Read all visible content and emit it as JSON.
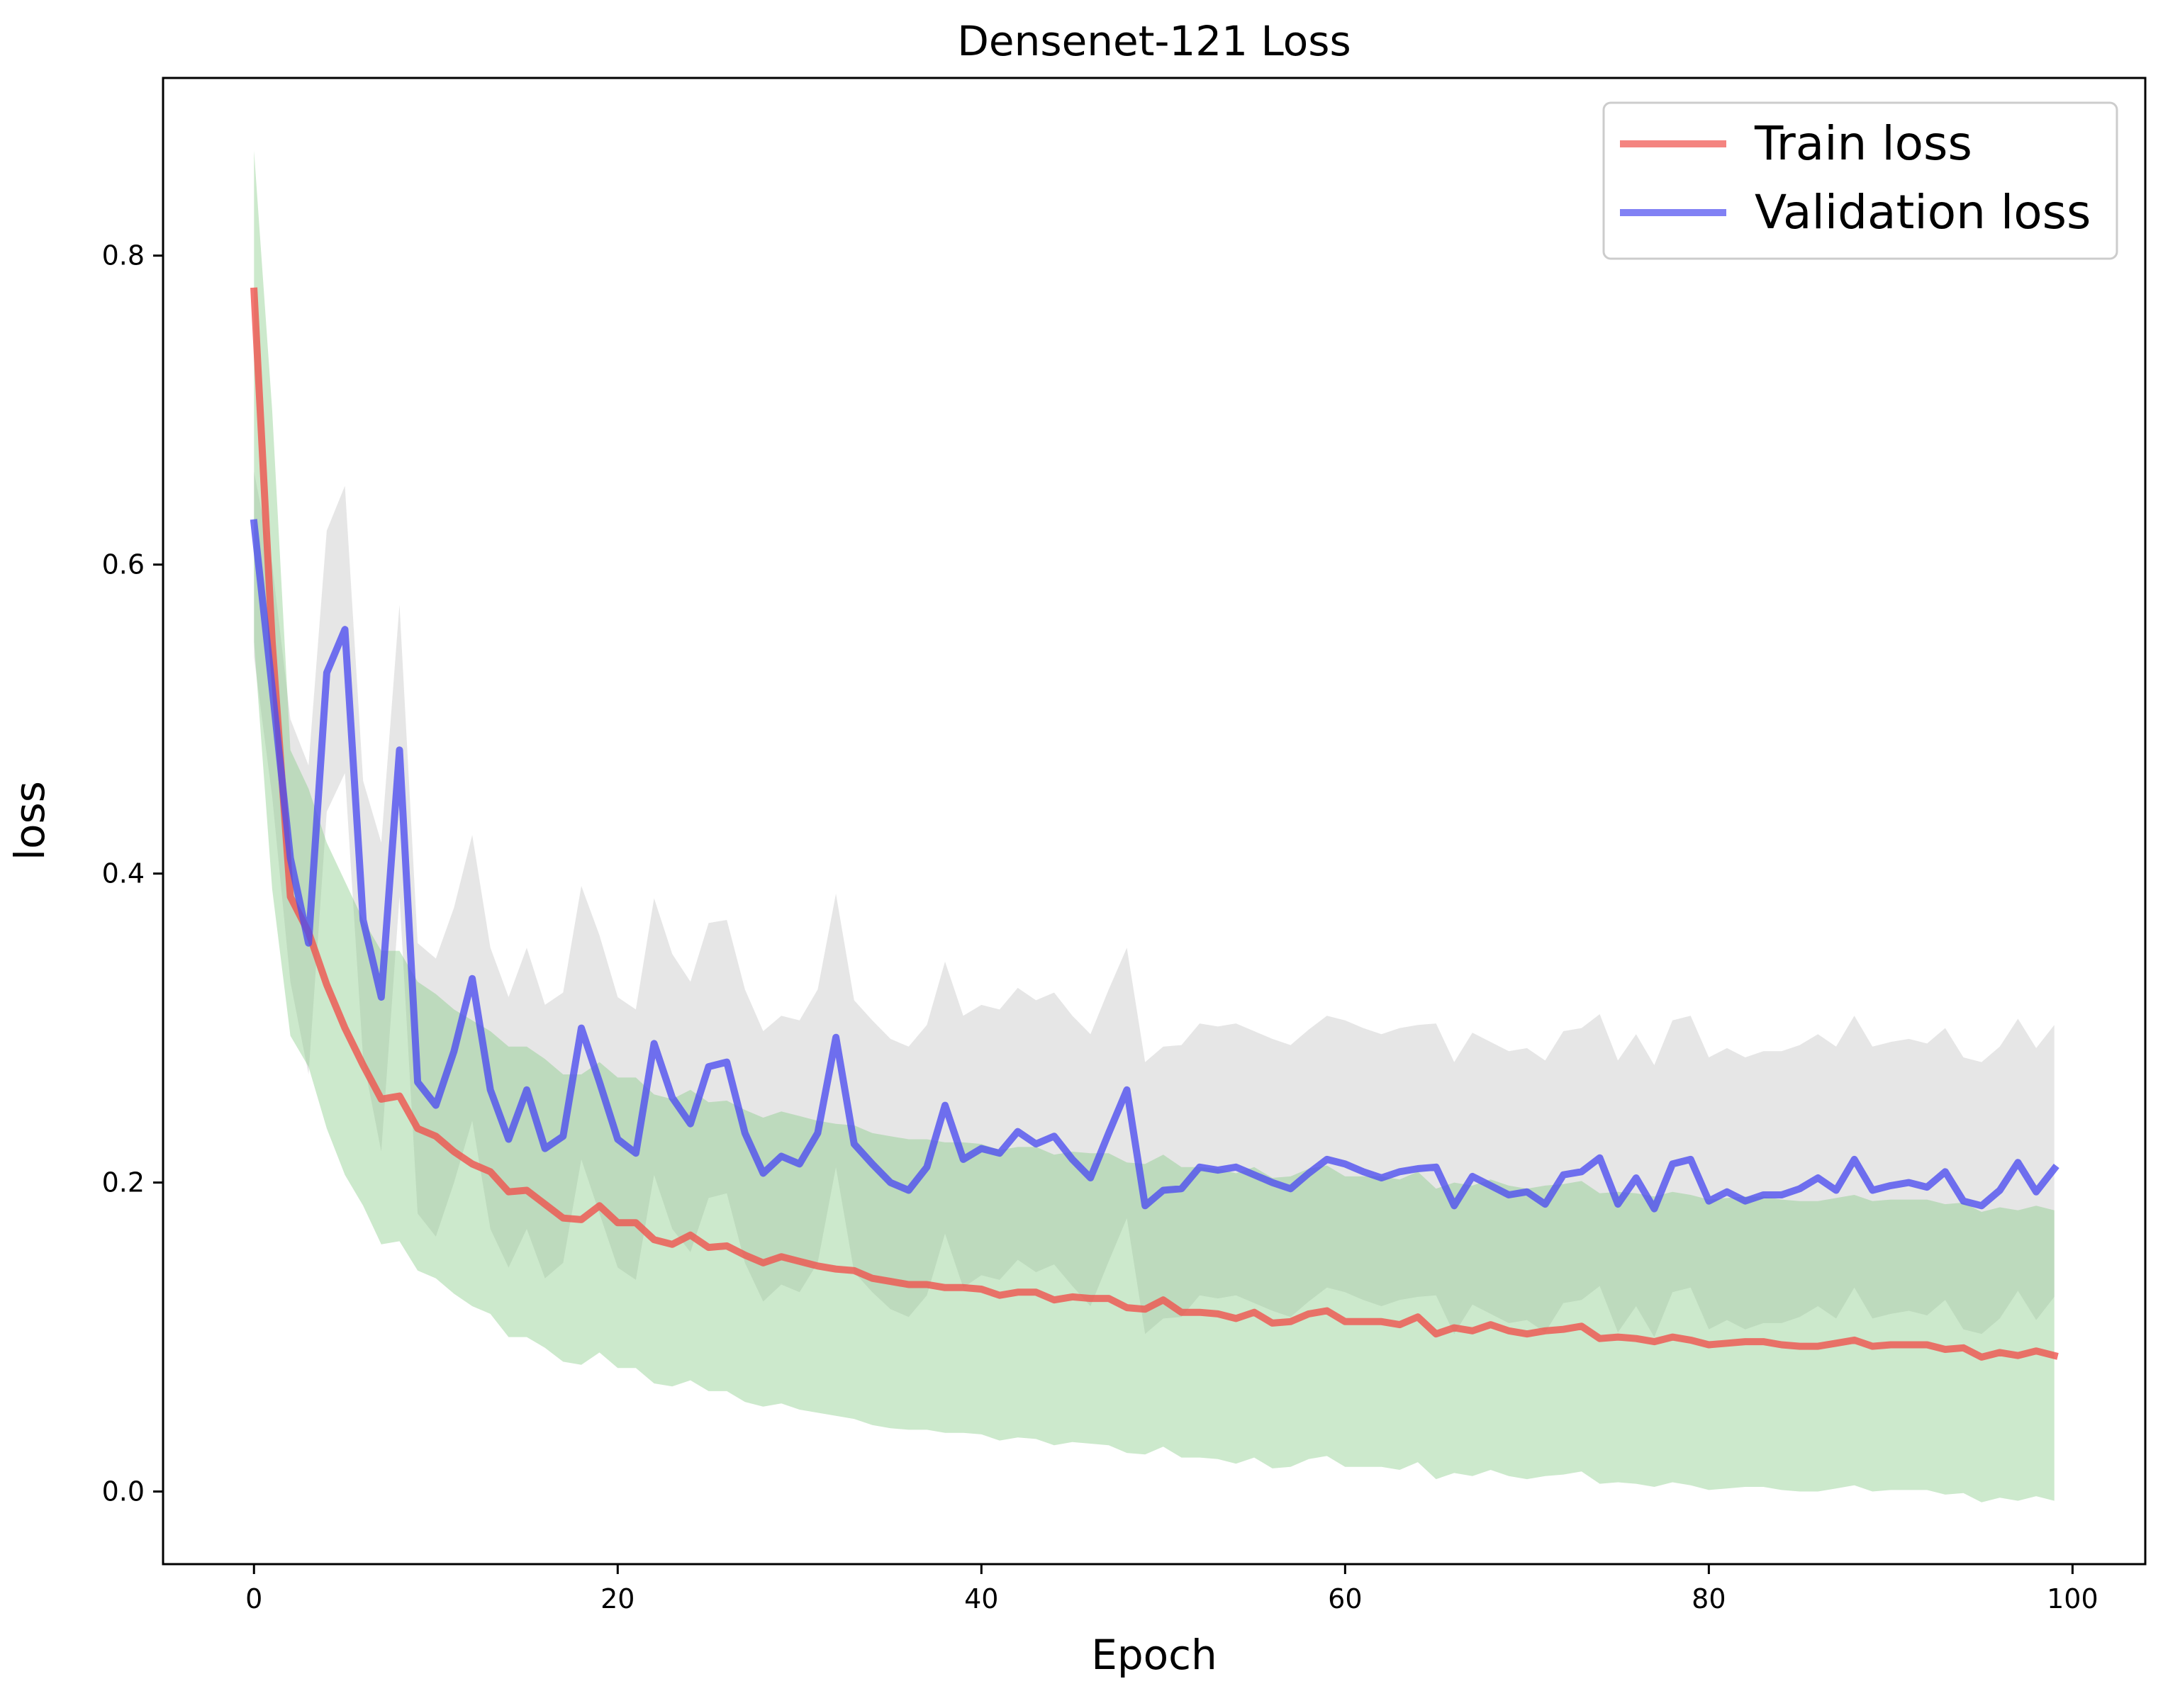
{
  "chart_data": {
    "type": "line",
    "title": "Densenet-121 Loss",
    "xlabel": "Epoch",
    "ylabel": "loss",
    "xlim": [
      -5,
      104
    ],
    "ylim": [
      -0.047,
      0.915
    ],
    "xticks": [
      0,
      20,
      40,
      60,
      80,
      100
    ],
    "yticks": [
      0.0,
      0.2,
      0.4,
      0.6,
      0.8
    ],
    "xtick_labels": [
      "0",
      "20",
      "40",
      "60",
      "80",
      "100"
    ],
    "ytick_labels": [
      "0.0",
      "0.2",
      "0.4",
      "0.6",
      "0.8"
    ],
    "grid": false,
    "legend_position": "top-right",
    "x": [
      0,
      1,
      2,
      3,
      4,
      5,
      6,
      7,
      8,
      9,
      10,
      11,
      12,
      13,
      14,
      15,
      16,
      17,
      18,
      19,
      20,
      21,
      22,
      23,
      24,
      25,
      26,
      27,
      28,
      29,
      30,
      31,
      32,
      33,
      34,
      35,
      36,
      37,
      38,
      39,
      40,
      41,
      42,
      43,
      44,
      45,
      46,
      47,
      48,
      49,
      50,
      51,
      52,
      53,
      54,
      55,
      56,
      57,
      58,
      59,
      60,
      61,
      62,
      63,
      64,
      65,
      66,
      67,
      68,
      69,
      70,
      71,
      72,
      73,
      74,
      75,
      76,
      77,
      78,
      79,
      80,
      81,
      82,
      83,
      84,
      85,
      86,
      87,
      88,
      89,
      90,
      91,
      92,
      93,
      94,
      95,
      96,
      97,
      98,
      99
    ],
    "series": [
      {
        "name": "Train loss",
        "color": "#f0504a",
        "values": [
          0.777,
          0.55,
          0.385,
          0.362,
          0.328,
          0.3,
          0.276,
          0.254,
          0.256,
          0.235,
          0.23,
          0.22,
          0.212,
          0.207,
          0.194,
          0.195,
          0.186,
          0.177,
          0.176,
          0.185,
          0.174,
          0.174,
          0.163,
          0.16,
          0.166,
          0.158,
          0.159,
          0.153,
          0.148,
          0.152,
          0.149,
          0.146,
          0.144,
          0.143,
          0.138,
          0.136,
          0.134,
          0.134,
          0.132,
          0.132,
          0.131,
          0.127,
          0.129,
          0.129,
          0.124,
          0.126,
          0.125,
          0.125,
          0.119,
          0.118,
          0.124,
          0.116,
          0.116,
          0.115,
          0.112,
          0.116,
          0.109,
          0.11,
          0.115,
          0.117,
          0.11,
          0.11,
          0.11,
          0.108,
          0.113,
          0.102,
          0.106,
          0.104,
          0.108,
          0.104,
          0.102,
          0.104,
          0.105,
          0.107,
          0.099,
          0.1,
          0.099,
          0.097,
          0.1,
          0.098,
          0.095,
          0.096,
          0.097,
          0.097,
          0.095,
          0.094,
          0.094,
          0.096,
          0.098,
          0.094,
          0.095,
          0.095,
          0.095,
          0.092,
          0.093,
          0.087,
          0.09,
          0.088,
          0.091,
          0.088
        ],
        "band_lower": [
          0.55,
          0.39,
          0.295,
          0.275,
          0.235,
          0.205,
          0.185,
          0.16,
          0.162,
          0.143,
          0.138,
          0.128,
          0.12,
          0.115,
          0.1,
          0.1,
          0.093,
          0.084,
          0.082,
          0.09,
          0.08,
          0.08,
          0.07,
          0.068,
          0.072,
          0.065,
          0.065,
          0.058,
          0.055,
          0.057,
          0.053,
          0.051,
          0.049,
          0.047,
          0.043,
          0.041,
          0.04,
          0.04,
          0.038,
          0.038,
          0.037,
          0.033,
          0.035,
          0.034,
          0.03,
          0.032,
          0.031,
          0.03,
          0.025,
          0.024,
          0.029,
          0.022,
          0.022,
          0.021,
          0.018,
          0.022,
          0.015,
          0.016,
          0.021,
          0.023,
          0.016,
          0.016,
          0.016,
          0.014,
          0.019,
          0.008,
          0.012,
          0.01,
          0.014,
          0.01,
          0.008,
          0.01,
          0.011,
          0.013,
          0.005,
          0.006,
          0.005,
          0.003,
          0.006,
          0.004,
          0.001,
          0.002,
          0.003,
          0.003,
          0.001,
          0.0,
          0.0,
          0.002,
          0.004,
          0.0,
          0.001,
          0.001,
          0.001,
          -0.002,
          -0.001,
          -0.007,
          -0.004,
          -0.006,
          -0.003,
          -0.006
        ],
        "band_upper": [
          0.868,
          0.7,
          0.48,
          0.455,
          0.42,
          0.395,
          0.37,
          0.35,
          0.35,
          0.33,
          0.322,
          0.312,
          0.305,
          0.298,
          0.288,
          0.288,
          0.28,
          0.27,
          0.27,
          0.278,
          0.268,
          0.268,
          0.257,
          0.254,
          0.26,
          0.252,
          0.253,
          0.247,
          0.242,
          0.246,
          0.243,
          0.24,
          0.238,
          0.237,
          0.232,
          0.23,
          0.228,
          0.228,
          0.226,
          0.226,
          0.225,
          0.221,
          0.223,
          0.223,
          0.218,
          0.22,
          0.219,
          0.219,
          0.213,
          0.212,
          0.218,
          0.21,
          0.21,
          0.209,
          0.206,
          0.21,
          0.203,
          0.204,
          0.209,
          0.211,
          0.204,
          0.204,
          0.204,
          0.202,
          0.207,
          0.196,
          0.2,
          0.198,
          0.202,
          0.198,
          0.196,
          0.198,
          0.199,
          0.201,
          0.193,
          0.194,
          0.193,
          0.191,
          0.194,
          0.192,
          0.189,
          0.19,
          0.191,
          0.191,
          0.189,
          0.188,
          0.188,
          0.19,
          0.192,
          0.188,
          0.189,
          0.189,
          0.189,
          0.186,
          0.187,
          0.181,
          0.184,
          0.182,
          0.185,
          0.182
        ],
        "band_color": "#7fc97f"
      },
      {
        "name": "Validation loss",
        "color": "#4b4bf0",
        "values": [
          0.627,
          0.52,
          0.41,
          0.355,
          0.53,
          0.558,
          0.37,
          0.32,
          0.48,
          0.265,
          0.25,
          0.285,
          0.332,
          0.26,
          0.228,
          0.26,
          0.222,
          0.23,
          0.3,
          0.265,
          0.228,
          0.219,
          0.29,
          0.255,
          0.238,
          0.275,
          0.278,
          0.232,
          0.206,
          0.217,
          0.212,
          0.232,
          0.294,
          0.225,
          0.212,
          0.2,
          0.195,
          0.21,
          0.25,
          0.215,
          0.222,
          0.219,
          0.233,
          0.225,
          0.23,
          0.215,
          0.203,
          0.232,
          0.26,
          0.185,
          0.195,
          0.196,
          0.21,
          0.208,
          0.21,
          0.205,
          0.2,
          0.196,
          0.206,
          0.215,
          0.212,
          0.207,
          0.203,
          0.207,
          0.209,
          0.21,
          0.185,
          0.204,
          0.198,
          0.192,
          0.194,
          0.186,
          0.205,
          0.207,
          0.216,
          0.186,
          0.203,
          0.183,
          0.212,
          0.215,
          0.188,
          0.194,
          0.188,
          0.192,
          0.192,
          0.196,
          0.203,
          0.195,
          0.215,
          0.195,
          0.198,
          0.2,
          0.197,
          0.207,
          0.188,
          0.185,
          0.195,
          0.213,
          0.194,
          0.209
        ],
        "band_lower": [
          0.54,
          0.45,
          0.33,
          0.27,
          0.44,
          0.465,
          0.28,
          0.22,
          0.385,
          0.18,
          0.165,
          0.2,
          0.24,
          0.17,
          0.145,
          0.17,
          0.138,
          0.148,
          0.215,
          0.18,
          0.145,
          0.137,
          0.205,
          0.17,
          0.155,
          0.19,
          0.193,
          0.148,
          0.123,
          0.134,
          0.129,
          0.148,
          0.21,
          0.142,
          0.129,
          0.118,
          0.113,
          0.127,
          0.167,
          0.132,
          0.14,
          0.137,
          0.15,
          0.142,
          0.147,
          0.133,
          0.12,
          0.149,
          0.177,
          0.102,
          0.112,
          0.113,
          0.127,
          0.125,
          0.127,
          0.122,
          0.117,
          0.113,
          0.123,
          0.132,
          0.129,
          0.124,
          0.12,
          0.124,
          0.126,
          0.127,
          0.102,
          0.121,
          0.115,
          0.109,
          0.111,
          0.103,
          0.122,
          0.124,
          0.133,
          0.103,
          0.12,
          0.1,
          0.129,
          0.132,
          0.105,
          0.111,
          0.105,
          0.109,
          0.109,
          0.113,
          0.12,
          0.112,
          0.132,
          0.112,
          0.115,
          0.117,
          0.114,
          0.124,
          0.105,
          0.102,
          0.112,
          0.13,
          0.111,
          0.126
        ],
        "band_upper": [
          0.66,
          0.6,
          0.5,
          0.47,
          0.622,
          0.651,
          0.46,
          0.42,
          0.574,
          0.355,
          0.345,
          0.378,
          0.425,
          0.352,
          0.32,
          0.352,
          0.315,
          0.323,
          0.392,
          0.36,
          0.32,
          0.312,
          0.384,
          0.348,
          0.33,
          0.368,
          0.37,
          0.325,
          0.298,
          0.308,
          0.305,
          0.325,
          0.387,
          0.318,
          0.305,
          0.293,
          0.288,
          0.302,
          0.343,
          0.308,
          0.315,
          0.312,
          0.326,
          0.318,
          0.323,
          0.308,
          0.296,
          0.325,
          0.352,
          0.278,
          0.288,
          0.289,
          0.303,
          0.301,
          0.303,
          0.298,
          0.293,
          0.289,
          0.299,
          0.308,
          0.305,
          0.3,
          0.296,
          0.3,
          0.302,
          0.303,
          0.278,
          0.297,
          0.291,
          0.285,
          0.287,
          0.279,
          0.298,
          0.3,
          0.309,
          0.279,
          0.296,
          0.276,
          0.305,
          0.308,
          0.281,
          0.287,
          0.281,
          0.285,
          0.285,
          0.289,
          0.296,
          0.288,
          0.308,
          0.288,
          0.291,
          0.293,
          0.29,
          0.3,
          0.281,
          0.278,
          0.288,
          0.306,
          0.287,
          0.302
        ],
        "band_color": "#c8c8c8"
      }
    ]
  }
}
